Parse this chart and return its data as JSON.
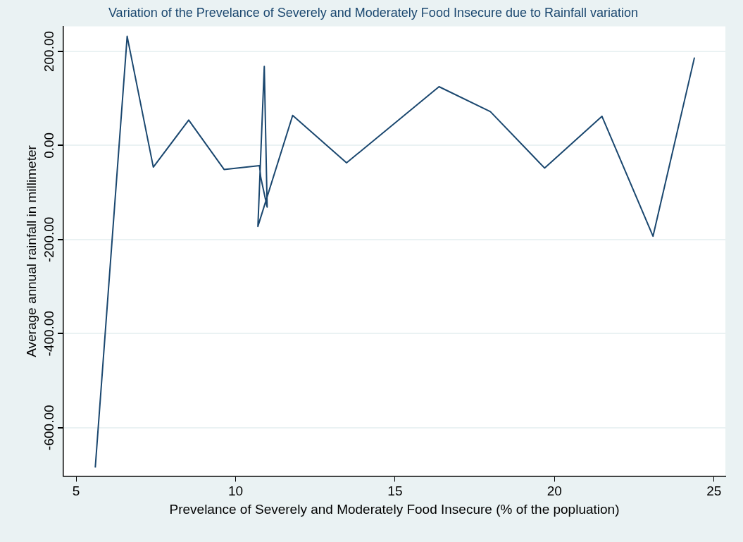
{
  "chart_data": {
    "type": "line",
    "title": "Variation of the Prevelance of Severely and Moderately Food Insecure due to Rainfall variation",
    "xlabel": "Prevelance of Severely and Moderately Food Insecure (% of the popluation)",
    "ylabel": "Average annual rainfall in millimeter",
    "x": [
      5.6,
      6.6,
      7.42,
      8.53,
      9.64,
      10.75,
      10.79,
      10.99,
      10.9,
      10.7,
      11.79,
      13.48,
      16.38,
      17.99,
      19.69,
      21.49,
      23.09,
      24.39
    ],
    "series": [
      {
        "color": "#1a476f",
        "values": [
          -685,
          232,
          -46,
          54,
          -51,
          -43,
          -68,
          -131,
          168,
          -172,
          64,
          -37,
          125,
          72,
          -48,
          62,
          -193,
          187
        ]
      }
    ],
    "xlim": [
      4.6,
      25.36
    ],
    "xticks": [
      5,
      10,
      15,
      20,
      25
    ],
    "ylim": [
      -703,
      253
    ],
    "yticks": [
      {
        "value": -600,
        "label": "-600.00"
      },
      {
        "value": -400,
        "label": "-400.00"
      },
      {
        "value": -200,
        "label": "-200.00"
      },
      {
        "value": 0,
        "label": "0.00"
      },
      {
        "value": 200,
        "label": "200.00"
      }
    ],
    "grid": "y",
    "marker": "none",
    "line_style": "solid"
  }
}
